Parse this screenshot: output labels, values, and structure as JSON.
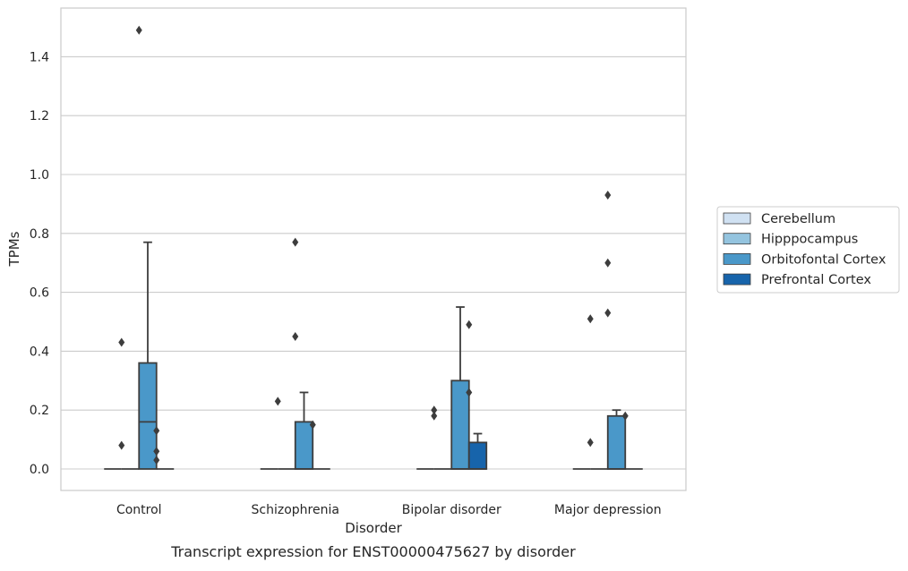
{
  "chart_data": {
    "type": "box",
    "title": "",
    "caption": "Transcript expression for ENST00000475627 by disorder",
    "xlabel": "Disorder",
    "ylabel": "TPMs",
    "categories": [
      "Control",
      "Schizophrenia",
      "Bipolar disorder",
      "Major depression"
    ],
    "ylim": [
      -0.07,
      1.56
    ],
    "yticks": [
      "0.0",
      "0.2",
      "0.4",
      "0.6",
      "0.8",
      "1.0",
      "1.2",
      "1.4"
    ],
    "grid": "horizontal",
    "legend_position": "right",
    "series": [
      {
        "name": "Cerebellum",
        "color": "#d0e1f2",
        "boxes": [
          {
            "q1": 0,
            "median": 0,
            "q3": 0,
            "whislo": 0,
            "whishi": 0,
            "fliers": []
          },
          {
            "q1": 0,
            "median": 0,
            "q3": 0,
            "whislo": 0,
            "whishi": 0,
            "fliers": []
          },
          {
            "q1": 0,
            "median": 0,
            "q3": 0,
            "whislo": 0,
            "whishi": 0,
            "fliers": []
          },
          {
            "q1": 0,
            "median": 0,
            "q3": 0,
            "whislo": 0,
            "whishi": 0,
            "fliers": []
          }
        ]
      },
      {
        "name": "Hipppocampus",
        "color": "#94c4df",
        "boxes": [
          {
            "q1": 0,
            "median": 0,
            "q3": 0,
            "whislo": 0,
            "whishi": 0,
            "fliers": [
              0.08,
              0.43
            ]
          },
          {
            "q1": 0,
            "median": 0,
            "q3": 0,
            "whislo": 0,
            "whishi": 0,
            "fliers": [
              0.23
            ]
          },
          {
            "q1": 0,
            "median": 0,
            "q3": 0,
            "whislo": 0,
            "whishi": 0,
            "fliers": [
              0.2,
              0.18
            ]
          },
          {
            "q1": 0,
            "median": 0,
            "q3": 0,
            "whislo": 0,
            "whishi": 0,
            "fliers": [
              0.51,
              0.09
            ]
          }
        ]
      },
      {
        "name": "Orbitofontal Cortex",
        "color": "#4a98c9",
        "boxes": [
          {
            "q1": 0,
            "median": 0.16,
            "q3": 0.36,
            "whislo": 0,
            "whishi": 0.77,
            "fliers": [
              1.49
            ]
          },
          {
            "q1": 0,
            "median": 0,
            "q3": 0.16,
            "whislo": 0,
            "whishi": 0.26,
            "fliers": [
              0.77,
              0.45
            ]
          },
          {
            "q1": 0,
            "median": 0,
            "q3": 0.3,
            "whislo": 0,
            "whishi": 0.55,
            "fliers": []
          },
          {
            "q1": 0,
            "median": 0,
            "q3": 0.18,
            "whislo": 0,
            "whishi": 0.2,
            "fliers": [
              0.93,
              0.7,
              0.53
            ]
          }
        ]
      },
      {
        "name": "Prefrontal Cortex",
        "color": "#1764ab",
        "boxes": [
          {
            "q1": 0,
            "median": 0,
            "q3": 0,
            "whislo": 0,
            "whishi": 0,
            "fliers": [
              0.13,
              0.06,
              0.03
            ]
          },
          {
            "q1": 0,
            "median": 0,
            "q3": 0,
            "whislo": 0,
            "whishi": 0,
            "fliers": [
              0.15
            ]
          },
          {
            "q1": 0,
            "median": 0,
            "q3": 0.09,
            "whislo": 0,
            "whishi": 0.12,
            "fliers": [
              0.49,
              0.26
            ]
          },
          {
            "q1": 0,
            "median": 0,
            "q3": 0,
            "whislo": 0,
            "whishi": 0,
            "fliers": [
              0.18
            ]
          }
        ]
      }
    ]
  }
}
